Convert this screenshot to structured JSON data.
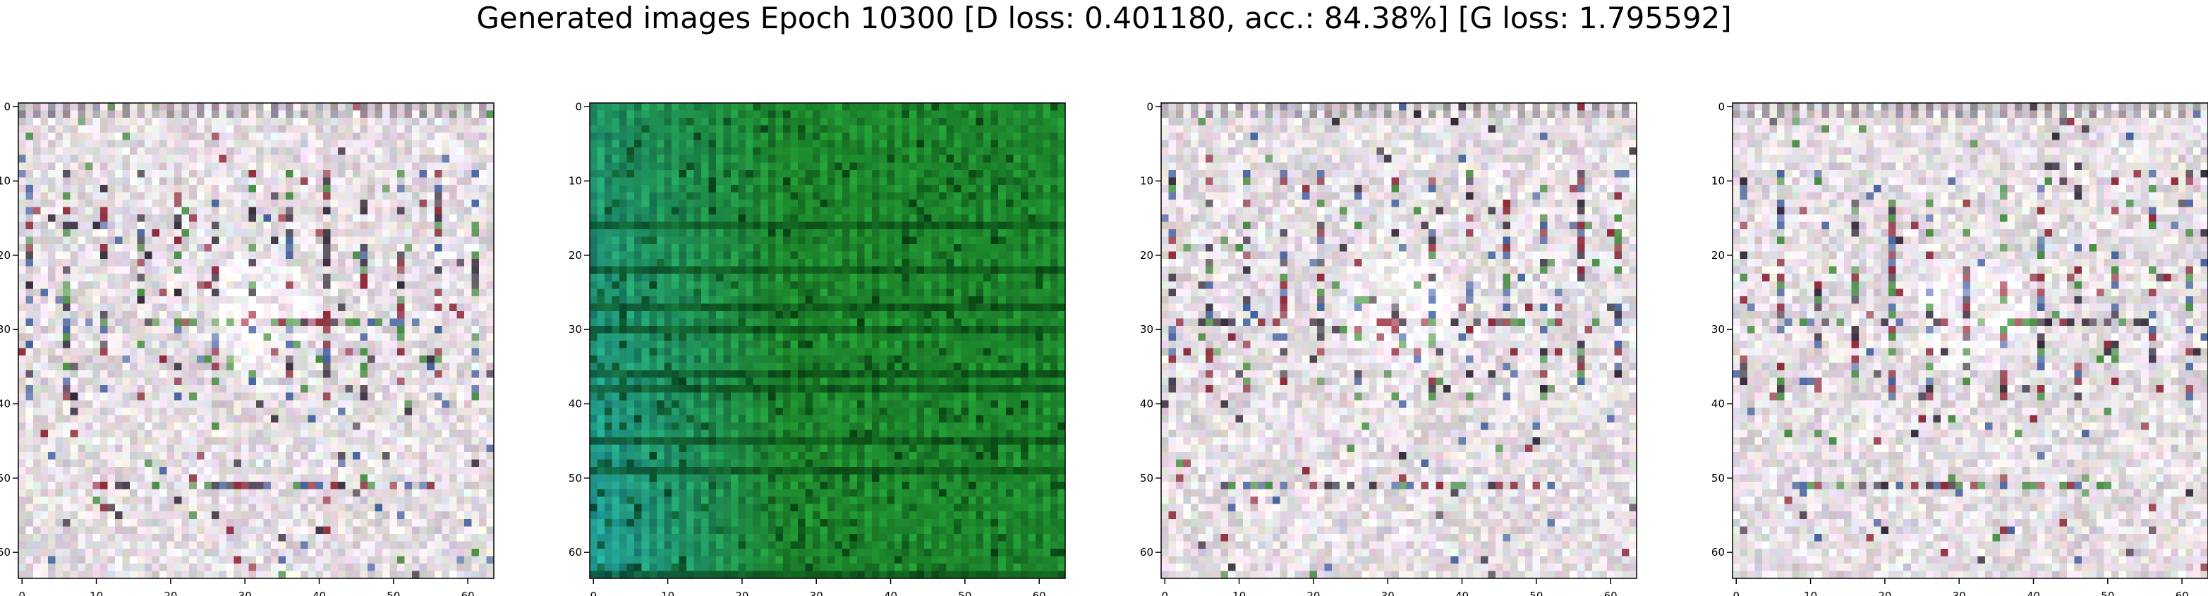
{
  "chart_data": {
    "type": "heatmap",
    "title": "Generated images Epoch 10300 [D loss: 0.401180, acc.: 84.38%] [G loss: 1.795592]",
    "panels": [
      {
        "name": "generated-image-1",
        "style": "pale",
        "xticks": [
          0,
          10,
          20,
          30,
          40,
          50,
          60
        ],
        "yticks": [
          0,
          10,
          20,
          30,
          40,
          50,
          60
        ],
        "xlim": [
          -0.5,
          63.5
        ],
        "ylim": [
          63.5,
          -0.5
        ],
        "grid_size": 64
      },
      {
        "name": "generated-image-2",
        "style": "green",
        "xticks": [
          0,
          10,
          20,
          30,
          40,
          50,
          60
        ],
        "yticks": [
          0,
          10,
          20,
          30,
          40,
          50,
          60
        ],
        "xlim": [
          -0.5,
          63.5
        ],
        "ylim": [
          63.5,
          -0.5
        ],
        "grid_size": 64
      },
      {
        "name": "generated-image-3",
        "style": "pale",
        "xticks": [
          0,
          10,
          20,
          30,
          40,
          50,
          60
        ],
        "yticks": [
          0,
          10,
          20,
          30,
          40,
          50,
          60
        ],
        "xlim": [
          -0.5,
          63.5
        ],
        "ylim": [
          63.5,
          -0.5
        ],
        "grid_size": 64
      },
      {
        "name": "generated-image-4",
        "style": "pale",
        "xticks": [
          0,
          10,
          20,
          30,
          40,
          50,
          60
        ],
        "yticks": [
          0,
          10,
          20,
          30,
          40,
          50,
          60
        ],
        "xlim": [
          -0.5,
          63.5
        ],
        "ylim": [
          63.5,
          -0.5
        ],
        "grid_size": 64
      }
    ],
    "colors": {
      "pale_base": "#e6dfe4",
      "pale_accent_dark": "#2a2030",
      "pale_accent_red": "#8a2030",
      "pale_accent_green": "#3f8a3a",
      "pale_accent_blue": "#3a5a9a",
      "green_base": "#1e8a2e",
      "green_dark": "#053a10",
      "green_teal": "#22a0a0",
      "axis": "#000000"
    }
  }
}
